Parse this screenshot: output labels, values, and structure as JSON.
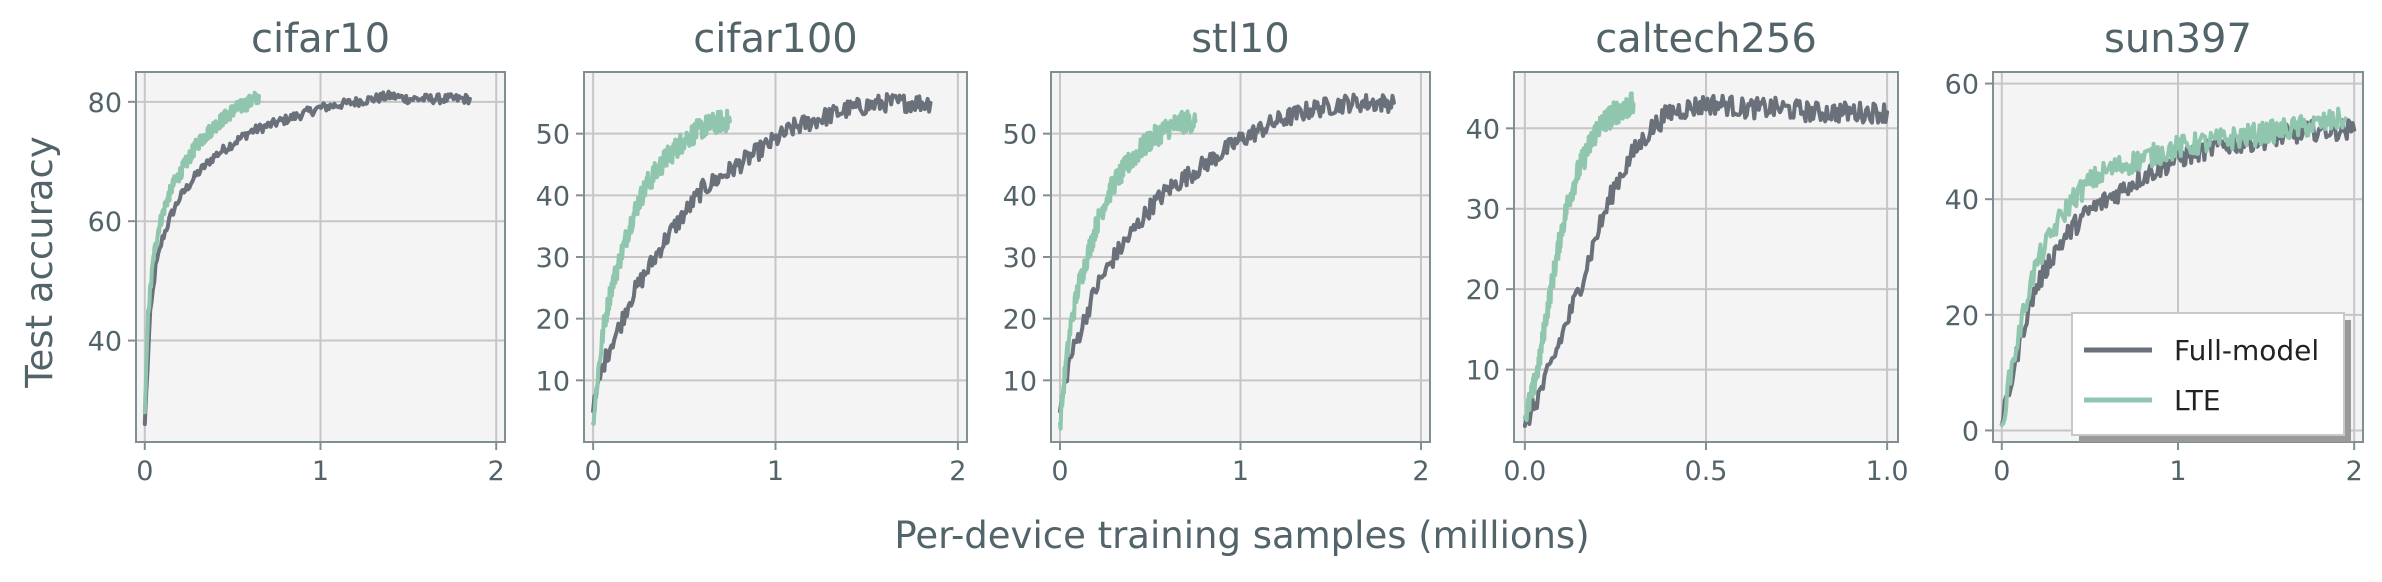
{
  "colors": {
    "full": "#6a717a",
    "lte": "#8fc6ad",
    "panel_bg": "#f4f4f4",
    "grid": "#c6c6c6",
    "spine": "#7f9094",
    "text": "#52646a"
  },
  "figure": {
    "ylabel": "Test accuracy",
    "xlabel": "Per-device training samples (millions)",
    "legend": {
      "full": "Full-model",
      "lte": "LTE",
      "placement": "lower-right of sun397 panel"
    }
  },
  "chart_data": [
    {
      "type": "line",
      "title": "cifar10",
      "grid": true,
      "xlim": [
        -0.05,
        2.05
      ],
      "ylim": [
        23,
        85
      ],
      "xticks": [
        0,
        1,
        2
      ],
      "xtick_labels": [
        "0",
        "1",
        "2"
      ],
      "yticks": [
        40,
        60,
        80
      ],
      "ytick_labels": [
        "40",
        "60",
        "80"
      ],
      "series": [
        {
          "name": "Full-model",
          "color_key": "full",
          "noise": 0.8,
          "x": [
            0,
            0.03,
            0.06,
            0.1,
            0.15,
            0.2,
            0.3,
            0.4,
            0.5,
            0.6,
            0.7,
            0.8,
            0.9,
            1.0,
            1.1,
            1.2,
            1.3,
            1.4,
            1.5,
            1.6,
            1.7,
            1.8,
            1.85
          ],
          "y": [
            26,
            44,
            52,
            57,
            61,
            64,
            68,
            71,
            73,
            75,
            76,
            77,
            78,
            79,
            79.5,
            80,
            80.5,
            81,
            80.5,
            80.5,
            80.5,
            80.5,
            80.5
          ]
        },
        {
          "name": "LTE",
          "color_key": "lte",
          "noise": 1.2,
          "x": [
            0,
            0.02,
            0.05,
            0.08,
            0.12,
            0.16,
            0.2,
            0.3,
            0.4,
            0.5,
            0.6,
            0.65
          ],
          "y": [
            28,
            45,
            54,
            59,
            63,
            66,
            68,
            73,
            76,
            78.5,
            80,
            81
          ]
        }
      ]
    },
    {
      "type": "line",
      "title": "cifar100",
      "grid": true,
      "xlim": [
        -0.05,
        2.05
      ],
      "ylim": [
        0,
        60
      ],
      "xticks": [
        0,
        1,
        2
      ],
      "xtick_labels": [
        "0",
        "1",
        "2"
      ],
      "yticks": [
        10,
        20,
        30,
        40,
        50
      ],
      "ytick_labels": [
        "10",
        "20",
        "30",
        "40",
        "50"
      ],
      "series": [
        {
          "name": "Full-model",
          "color_key": "full",
          "noise": 1.5,
          "x": [
            0,
            0.05,
            0.1,
            0.15,
            0.2,
            0.3,
            0.4,
            0.5,
            0.6,
            0.7,
            0.8,
            0.9,
            1.0,
            1.1,
            1.2,
            1.3,
            1.4,
            1.5,
            1.6,
            1.7,
            1.85
          ],
          "y": [
            5,
            12,
            16,
            19,
            23,
            28,
            33,
            37,
            41,
            43,
            45,
            47,
            49,
            51,
            52,
            53,
            54,
            54.5,
            55,
            55,
            55
          ]
        },
        {
          "name": "LTE",
          "color_key": "lte",
          "noise": 1.8,
          "x": [
            0,
            0.03,
            0.06,
            0.1,
            0.15,
            0.2,
            0.25,
            0.3,
            0.4,
            0.5,
            0.6,
            0.7,
            0.75
          ],
          "y": [
            3,
            12,
            19,
            25,
            30,
            35,
            39,
            42,
            46,
            49,
            51,
            52,
            52
          ]
        }
      ]
    },
    {
      "type": "line",
      "title": "stl10",
      "grid": true,
      "xlim": [
        -0.05,
        2.05
      ],
      "ylim": [
        0,
        60
      ],
      "xticks": [
        0,
        1,
        2
      ],
      "xtick_labels": [
        "0",
        "1",
        "2"
      ],
      "yticks": [
        10,
        20,
        30,
        40,
        50
      ],
      "ytick_labels": [
        "10",
        "20",
        "30",
        "40",
        "50"
      ],
      "series": [
        {
          "name": "Full-model",
          "color_key": "full",
          "noise": 1.5,
          "x": [
            0,
            0.05,
            0.1,
            0.15,
            0.2,
            0.3,
            0.4,
            0.5,
            0.6,
            0.7,
            0.8,
            0.9,
            1.0,
            1.1,
            1.2,
            1.3,
            1.4,
            1.5,
            1.6,
            1.7,
            1.85
          ],
          "y": [
            5,
            13,
            17,
            21,
            25,
            30,
            34,
            38,
            41,
            43,
            45,
            47,
            49,
            50.5,
            52,
            53,
            54,
            54.5,
            55,
            55,
            55
          ]
        },
        {
          "name": "LTE",
          "color_key": "lte",
          "noise": 1.8,
          "x": [
            0,
            0.03,
            0.06,
            0.1,
            0.15,
            0.2,
            0.25,
            0.3,
            0.4,
            0.5,
            0.6,
            0.7,
            0.75
          ],
          "y": [
            3,
            12,
            19,
            25,
            30,
            35,
            39,
            42,
            46,
            49,
            51,
            52,
            52
          ]
        }
      ]
    },
    {
      "type": "line",
      "title": "caltech256",
      "grid": true,
      "xlim": [
        -0.03,
        1.03
      ],
      "ylim": [
        1,
        47
      ],
      "xticks": [
        0,
        0.5,
        1.0
      ],
      "xtick_labels": [
        "0.0",
        "0.5",
        "1.0"
      ],
      "yticks": [
        10,
        20,
        30,
        40
      ],
      "ytick_labels": [
        "10",
        "20",
        "30",
        "40"
      ],
      "series": [
        {
          "name": "Full-model",
          "color_key": "full",
          "noise": 1.3,
          "x": [
            0,
            0.03,
            0.06,
            0.1,
            0.15,
            0.2,
            0.25,
            0.3,
            0.35,
            0.4,
            0.45,
            0.5,
            0.55,
            0.6,
            0.7,
            0.8,
            0.9,
            1.0
          ],
          "y": [
            3,
            6,
            9,
            14,
            20,
            27,
            33,
            37,
            40,
            42,
            42.5,
            43,
            43,
            42.5,
            42.5,
            42,
            42,
            42
          ]
        },
        {
          "name": "LTE",
          "color_key": "lte",
          "noise": 1.5,
          "x": [
            0,
            0.02,
            0.04,
            0.06,
            0.08,
            0.1,
            0.12,
            0.15,
            0.18,
            0.2,
            0.25,
            0.3
          ],
          "y": [
            4,
            7,
            11,
            17,
            22,
            27,
            31,
            35,
            38,
            40,
            42,
            43
          ]
        }
      ]
    },
    {
      "type": "line",
      "title": "sun397",
      "grid": true,
      "xlim": [
        -0.05,
        2.05
      ],
      "ylim": [
        -2,
        62
      ],
      "xticks": [
        0,
        1,
        2
      ],
      "xtick_labels": [
        "0",
        "1",
        "2"
      ],
      "yticks": [
        0,
        20,
        40,
        60
      ],
      "ytick_labels": [
        "0",
        "20",
        "40",
        "60"
      ],
      "series": [
        {
          "name": "Full-model",
          "color_key": "full",
          "noise": 1.8,
          "x": [
            0,
            0.05,
            0.1,
            0.15,
            0.2,
            0.3,
            0.4,
            0.5,
            0.6,
            0.8,
            1.0,
            1.2,
            1.4,
            1.6,
            1.8,
            2.0
          ],
          "y": [
            1,
            8,
            15,
            21,
            25,
            31,
            35,
            38,
            40,
            44,
            47,
            49,
            50,
            51,
            52,
            52
          ]
        },
        {
          "name": "LTE",
          "color_key": "lte",
          "noise": 2.0,
          "x": [
            0,
            0.05,
            0.1,
            0.15,
            0.2,
            0.3,
            0.4,
            0.5,
            0.6,
            0.8,
            1.0,
            1.2,
            1.4,
            1.6,
            1.8,
            1.95
          ],
          "y": [
            1,
            10,
            17,
            24,
            29,
            35,
            40,
            43,
            45,
            47,
            49,
            50,
            51,
            52,
            53,
            54
          ]
        }
      ]
    }
  ]
}
